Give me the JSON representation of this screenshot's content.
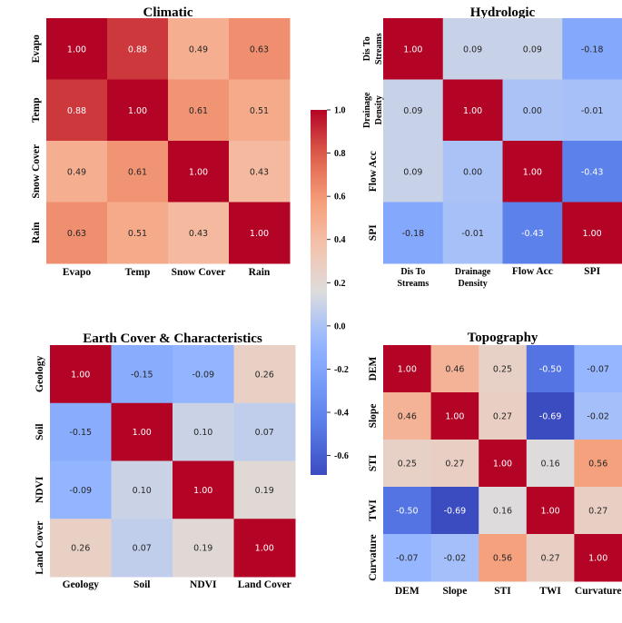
{
  "chart_data": [
    {
      "type": "heatmap",
      "title": "Climatic",
      "labels": [
        "Evapo",
        "Temp",
        "Snow Cover",
        "Rain"
      ],
      "values": [
        [
          1.0,
          0.88,
          0.49,
          0.63
        ],
        [
          0.88,
          1.0,
          0.61,
          0.51
        ],
        [
          0.49,
          0.61,
          1.0,
          0.43
        ],
        [
          0.63,
          0.51,
          0.43,
          1.0
        ]
      ]
    },
    {
      "type": "heatmap",
      "title": "Hydrologic",
      "labels": [
        "Dis To Streams",
        "Drainage Density",
        "Flow Acc",
        "SPI"
      ],
      "values": [
        [
          1.0,
          0.09,
          0.09,
          -0.18
        ],
        [
          0.09,
          1.0,
          0.0,
          -0.01
        ],
        [
          0.09,
          0.0,
          1.0,
          -0.43
        ],
        [
          -0.18,
          -0.01,
          -0.43,
          1.0
        ]
      ]
    },
    {
      "type": "heatmap",
      "title": "Earth Cover & Characteristics",
      "labels": [
        "Geology",
        "Soil",
        "NDVI",
        "Land Cover"
      ],
      "values": [
        [
          1.0,
          -0.15,
          -0.09,
          0.26
        ],
        [
          -0.15,
          1.0,
          0.1,
          0.07
        ],
        [
          -0.09,
          0.1,
          1.0,
          0.19
        ],
        [
          0.26,
          0.07,
          0.19,
          1.0
        ]
      ]
    },
    {
      "type": "heatmap",
      "title": "Topography",
      "labels": [
        "DEM",
        "Slope",
        "STI",
        "TWI",
        "Curvature"
      ],
      "values": [
        [
          1.0,
          0.46,
          0.25,
          -0.5,
          -0.07
        ],
        [
          0.46,
          1.0,
          0.27,
          -0.69,
          -0.02
        ],
        [
          0.25,
          0.27,
          1.0,
          0.16,
          0.56
        ],
        [
          -0.5,
          -0.69,
          0.16,
          1.0,
          0.27
        ],
        [
          -0.07,
          -0.02,
          0.56,
          0.27,
          1.0
        ]
      ]
    }
  ],
  "colorbar": {
    "colormap": "coolwarm",
    "vmin": -0.69,
    "vmax": 1.0,
    "ticks": [
      "1.0",
      "0.8",
      "0.6",
      "0.4",
      "0.2",
      "0.0",
      "-0.2",
      "-0.4",
      "-0.6"
    ]
  },
  "colors": {
    "low": "#3b4cc0",
    "mid": "#dddddd",
    "high": "#b40426"
  }
}
